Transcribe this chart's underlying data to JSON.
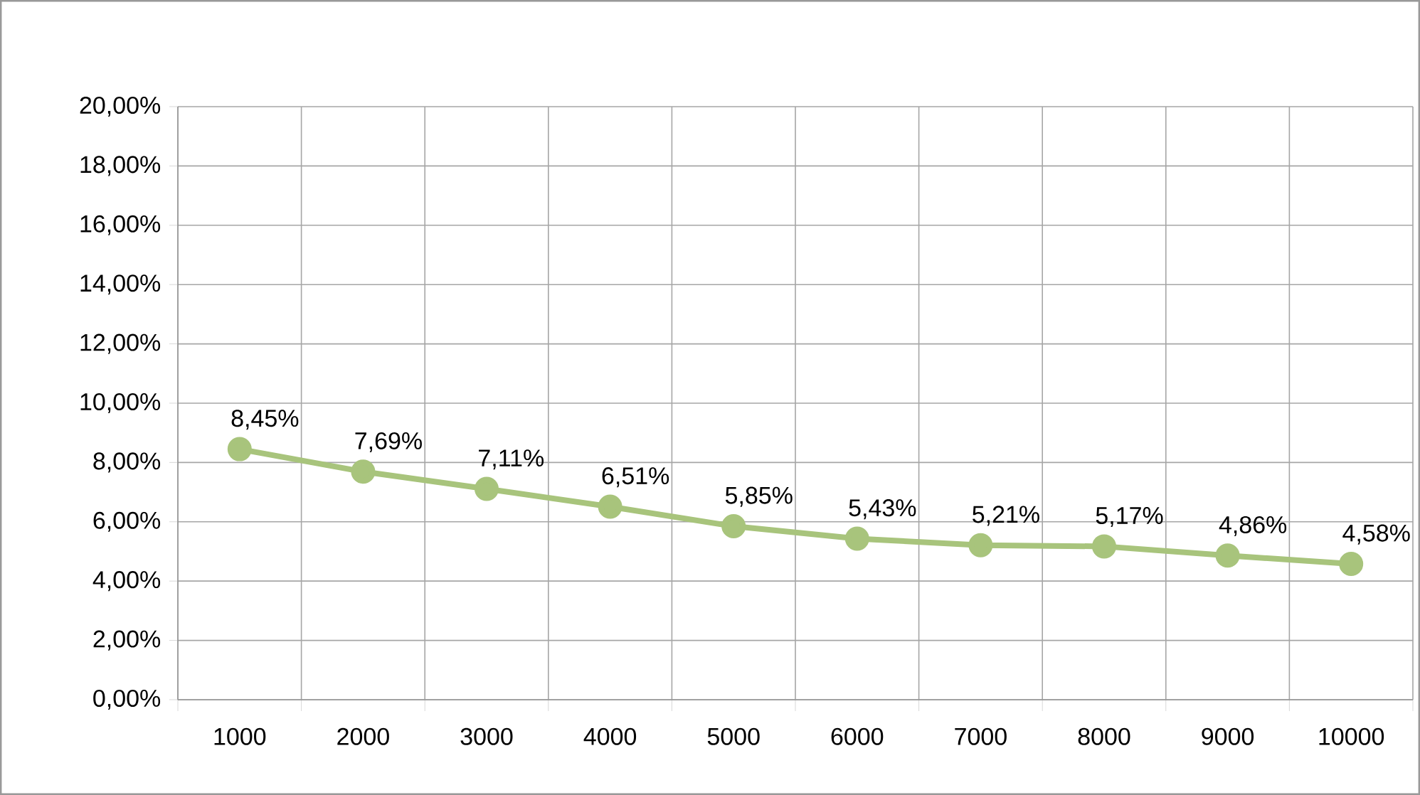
{
  "chart_data": {
    "type": "line",
    "categories": [
      "1000",
      "2000",
      "3000",
      "4000",
      "5000",
      "6000",
      "7000",
      "8000",
      "9000",
      "10000"
    ],
    "values": [
      8.45,
      7.69,
      7.11,
      6.51,
      5.85,
      5.43,
      5.21,
      5.17,
      4.86,
      4.58
    ],
    "value_labels": [
      "8,45%",
      "7,69%",
      "7,11%",
      "6,51%",
      "5,85%",
      "5,43%",
      "5,21%",
      "5,17%",
      "4,86%",
      "4,58%"
    ],
    "color": "#a8c47c",
    "ylim": [
      0,
      20
    ],
    "yticks": [
      {
        "value": 0,
        "label": "0,00%"
      },
      {
        "value": 2,
        "label": "2,00%"
      },
      {
        "value": 4,
        "label": "4,00%"
      },
      {
        "value": 6,
        "label": "6,00%"
      },
      {
        "value": 8,
        "label": "8,00%"
      },
      {
        "value": 10,
        "label": "10,00%"
      },
      {
        "value": 12,
        "label": "12,00%"
      },
      {
        "value": 14,
        "label": "14,00%"
      },
      {
        "value": 16,
        "label": "16,00%"
      },
      {
        "value": 18,
        "label": "18,00%"
      },
      {
        "value": 20,
        "label": "20,00%"
      }
    ],
    "grid": true,
    "marker": "circle"
  }
}
